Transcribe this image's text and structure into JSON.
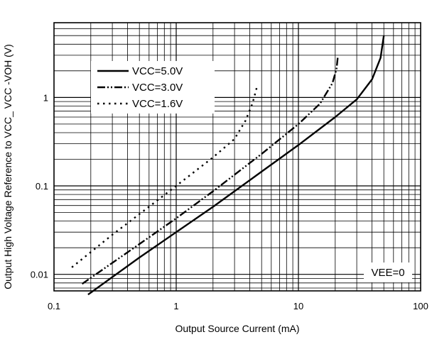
{
  "chart_data": {
    "type": "line",
    "title": "",
    "xlabel": "Output Source Current (mA)",
    "ylabel": "Output High Voltage Reference to VCC_ VCC -VOH (V)",
    "x_scale": "log",
    "y_scale": "log",
    "xlim": [
      0.1,
      100
    ],
    "ylim": [
      0.0065,
      7
    ],
    "x_ticks": [
      "0.1",
      "1",
      "10",
      "100"
    ],
    "y_ticks": [
      "0.01",
      "0.1",
      "1"
    ],
    "grid": true,
    "legend_position": "top-left",
    "annotation": "VEE=0",
    "series": [
      {
        "name": "VCC=5.0V",
        "style": "solid",
        "x": [
          0.19,
          0.5,
          1,
          2,
          5,
          10,
          20,
          30,
          40,
          47,
          50
        ],
        "y": [
          0.0059,
          0.0155,
          0.03,
          0.058,
          0.145,
          0.29,
          0.6,
          0.95,
          1.6,
          2.8,
          5.0
        ]
      },
      {
        "name": "VCC=3.0V",
        "style": "dash-dot-dot",
        "x": [
          0.17,
          0.5,
          1,
          2,
          5,
          10,
          15,
          19,
          20.5,
          21
        ],
        "y": [
          0.0078,
          0.022,
          0.043,
          0.087,
          0.23,
          0.5,
          0.85,
          1.45,
          2.1,
          2.85
        ]
      },
      {
        "name": "VCC=1.6V",
        "style": "dotted",
        "x": [
          0.14,
          0.3,
          0.5,
          1,
          2,
          3,
          3.7,
          4.2,
          4.6
        ],
        "y": [
          0.012,
          0.028,
          0.048,
          0.1,
          0.21,
          0.34,
          0.55,
          0.85,
          1.35
        ]
      }
    ]
  }
}
